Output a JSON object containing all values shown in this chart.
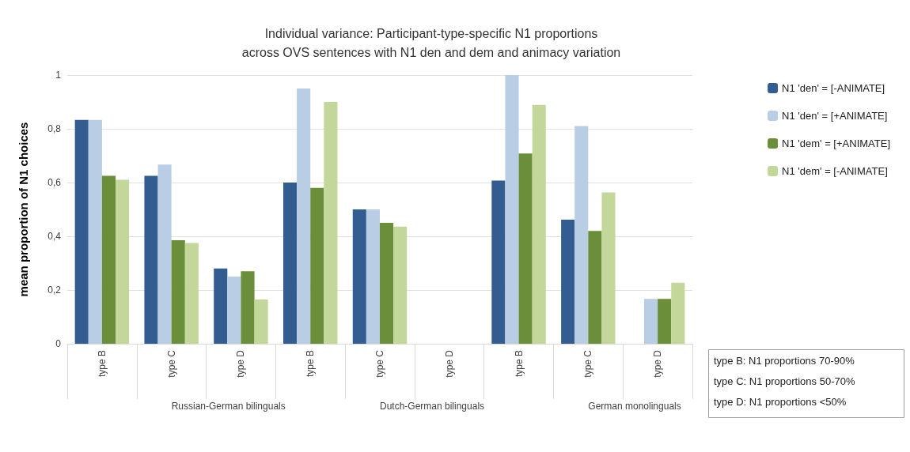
{
  "chart_data": {
    "type": "bar",
    "title": "Individual variance: Participant-type-specific N1 proportions\nacross OVS sentences with N1 den and dem and animacy variation",
    "ylabel": "mean proportion of N1 choices",
    "categories": [
      "type B",
      "type C",
      "type D",
      "type B",
      "type C",
      "type D",
      "type B",
      "type C",
      "type D"
    ],
    "series": [
      {
        "name": "N1 'den' = [-ANIMATE]",
        "color": "#335d91",
        "values": [
          0.833,
          0.625,
          0.28,
          0.6,
          0.5,
          null,
          0.607,
          0.462,
          null
        ]
      },
      {
        "name": "N1 'den' = [+ANIMATE]",
        "color": "#b9cde5",
        "values": [
          0.833,
          0.667,
          0.25,
          0.95,
          0.5,
          null,
          1,
          0.81,
          0.167
        ]
      },
      {
        "name": "N1 'dem' = [+ANIMATE]",
        "color": "#6b8e3b",
        "values": [
          0.625,
          0.385,
          0.27,
          0.58,
          0.45,
          null,
          0.708,
          0.42,
          0.167
        ]
      },
      {
        "name": "N1 'dem' = [-ANIMATE]",
        "color": "#c4d79b",
        "values": [
          0.61,
          0.375,
          0.165,
          0.9,
          0.436,
          null,
          0.889,
          0.563,
          0.227
        ]
      }
    ],
    "ylim": [
      0,
      1
    ],
    "yticks": [
      0,
      {
        "value": 0.2,
        "label": "0,2"
      },
      {
        "value": 0.4,
        "label": "0,4"
      },
      {
        "value": 0.6,
        "label": "0,6"
      },
      {
        "value": 0.8,
        "label": "0,8"
      },
      1
    ],
    "grid": "y",
    "legend": "right",
    "annotations": [
      "Russian-German bilinguals",
      "Dutch-German bilinguals",
      "German monolinguals",
      "type B: N1 proportions 70-90%",
      "type C: N1 proportions 50-70%",
      "type D: N1 proportions <50%"
    ]
  }
}
